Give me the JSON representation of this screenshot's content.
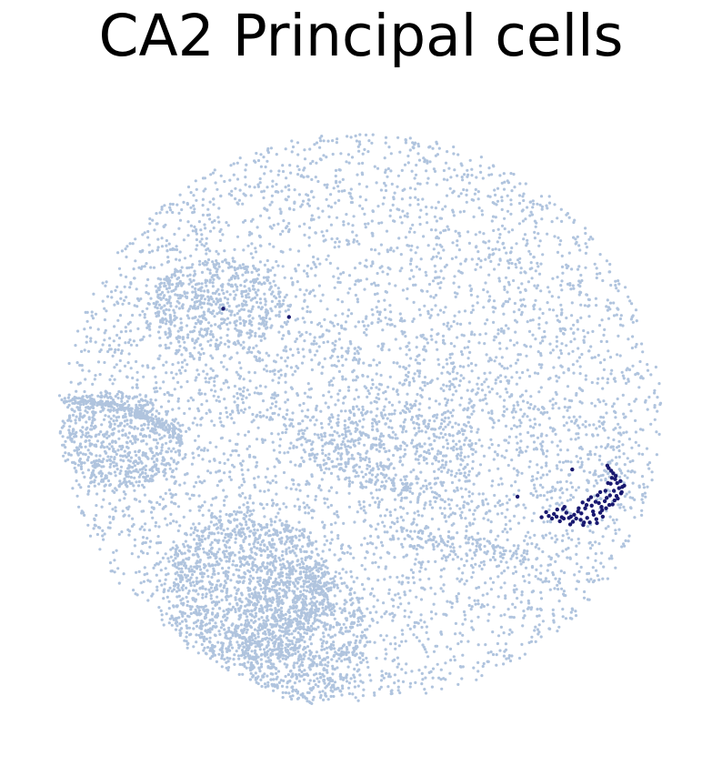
{
  "chart_data": {
    "type": "scatter",
    "title": "CA2 Principal cells",
    "xlabel": "",
    "ylabel": "",
    "axes_visible": false,
    "grid": false,
    "legend": "none",
    "xlim": [
      0,
      100
    ],
    "ylim": [
      0,
      100
    ],
    "colors": {
      "background": "#b0c4de",
      "highlight": "#191970"
    },
    "series": [
      {
        "role": "background",
        "color": "#b0c4de",
        "point_count_approx": 70000,
        "regions": [
          {
            "id": "tissue-disc",
            "shape": "ellipse",
            "cx": 50.0,
            "cy": 49.5,
            "rx": 46.0,
            "ry": 44.0,
            "density": 0.28
          },
          {
            "id": "upper-band",
            "shape": "path",
            "points": [
              [
                33,
                63
              ],
              [
                44,
                62
              ],
              [
                54,
                58
              ],
              [
                64,
                53
              ],
              [
                75,
                49
              ],
              [
                86,
                44
              ],
              [
                92,
                38
              ]
            ],
            "width": 5.0,
            "density": 1.0
          },
          {
            "id": "lower-band",
            "shape": "path",
            "points": [
              [
                14,
                66
              ],
              [
                25,
                58
              ],
              [
                34,
                51
              ],
              [
                42,
                45
              ],
              [
                52,
                40
              ],
              [
                62,
                36
              ],
              [
                74,
                36
              ],
              [
                84,
                40
              ]
            ],
            "width": 3.0,
            "density": 0.9
          },
          {
            "id": "left-lobe",
            "shape": "ellipse",
            "cx": 13.0,
            "cy": 46.0,
            "rx": 9.5,
            "ry": 7.5,
            "density": 0.85
          },
          {
            "id": "bottom-lobe-left",
            "shape": "ellipse",
            "cx": 32.0,
            "cy": 23.0,
            "rx": 13.0,
            "ry": 12.0,
            "density": 0.85
          },
          {
            "id": "bottom-lobe-center",
            "shape": "ellipse",
            "cx": 41.0,
            "cy": 16.0,
            "rx": 10.0,
            "ry": 11.0,
            "density": 0.8
          },
          {
            "id": "left-wing-arc",
            "shape": "path",
            "points": [
              [
                4,
                52
              ],
              [
                10,
                52
              ],
              [
                16,
                50
              ],
              [
                22,
                47
              ]
            ],
            "width": 0.8,
            "density": 0.9
          },
          {
            "id": "upper-left-blob",
            "shape": "ellipse",
            "cx": 28.0,
            "cy": 67.0,
            "rx": 10.0,
            "ry": 7.0,
            "density": 0.7
          },
          {
            "id": "mid-inner",
            "shape": "ellipse",
            "cx": 55.0,
            "cy": 45.0,
            "rx": 13.0,
            "ry": 7.0,
            "density": 0.45
          },
          {
            "id": "lower-right-strip",
            "shape": "path",
            "points": [
              [
                55,
                32
              ],
              [
                65,
                30
              ],
              [
                76,
                28
              ]
            ],
            "width": 2.2,
            "density": 0.6
          }
        ]
      },
      {
        "role": "highlight",
        "name": "CA2 Principal cells",
        "color": "#191970",
        "points": [
          [
            28.7,
            66.3
          ],
          [
            38.8,
            65.0
          ],
          [
            82.3,
            41.4
          ],
          [
            73.9,
            37.2
          ],
          [
            80.0,
            35.2
          ],
          [
            79.5,
            34.5
          ],
          [
            79.9,
            34.1
          ],
          [
            78.7,
            34.2
          ],
          [
            81.0,
            33.8
          ],
          [
            82.4,
            33.3
          ],
          [
            83.6,
            33.6
          ],
          [
            84.6,
            33.9
          ],
          [
            85.6,
            34.4
          ],
          [
            86.6,
            34.7
          ],
          [
            87.5,
            35.4
          ],
          [
            88.5,
            36.0
          ],
          [
            89.3,
            36.9
          ],
          [
            89.8,
            37.7
          ],
          [
            90.0,
            38.7
          ],
          [
            89.7,
            39.6
          ],
          [
            89.0,
            40.4
          ],
          [
            88.3,
            41.2
          ],
          [
            87.7,
            42.0
          ],
          [
            83.2,
            34.9
          ],
          [
            84.3,
            35.4
          ],
          [
            85.3,
            35.8
          ],
          [
            86.4,
            36.2
          ],
          [
            87.3,
            36.5
          ],
          [
            88.1,
            37.4
          ],
          [
            88.7,
            38.1
          ],
          [
            82.1,
            34.1
          ],
          [
            85.0,
            33.2
          ],
          [
            86.0,
            33.7
          ],
          [
            87.0,
            34.1
          ],
          [
            83.7,
            34.6
          ],
          [
            84.8,
            36.7
          ],
          [
            86.2,
            37.4
          ],
          [
            87.4,
            38.1
          ],
          [
            88.2,
            39.2
          ],
          [
            88.9,
            39.9
          ],
          [
            81.4,
            34.7
          ],
          [
            80.7,
            34.0
          ],
          [
            82.9,
            33.8
          ],
          [
            84.1,
            33.2
          ],
          [
            85.5,
            34.9
          ],
          [
            86.9,
            35.1
          ],
          [
            88.0,
            35.9
          ],
          [
            89.1,
            37.3
          ],
          [
            89.5,
            38.5
          ],
          [
            89.2,
            39.3
          ],
          [
            88.6,
            40.8
          ],
          [
            87.9,
            41.6
          ],
          [
            86.8,
            35.6
          ],
          [
            85.9,
            36.4
          ],
          [
            84.5,
            35.9
          ],
          [
            83.3,
            35.4
          ],
          [
            82.6,
            34.4
          ],
          [
            81.8,
            33.9
          ],
          [
            80.4,
            33.4
          ],
          [
            79.2,
            33.8
          ],
          [
            87.6,
            37.0
          ],
          [
            88.8,
            36.6
          ],
          [
            89.9,
            37.9
          ],
          [
            90.3,
            38.9
          ],
          [
            81.1,
            35.6
          ],
          [
            83.9,
            36.3
          ],
          [
            85.2,
            37.1
          ],
          [
            86.6,
            37.9
          ],
          [
            82.0,
            32.9
          ],
          [
            84.0,
            32.8
          ],
          [
            86.1,
            33.1
          ],
          [
            78.3,
            34.8
          ],
          [
            77.6,
            34.0
          ],
          [
            80.9,
            35.3
          ],
          [
            87.8,
            39.3
          ],
          [
            88.4,
            40.1
          ]
        ]
      }
    ]
  }
}
